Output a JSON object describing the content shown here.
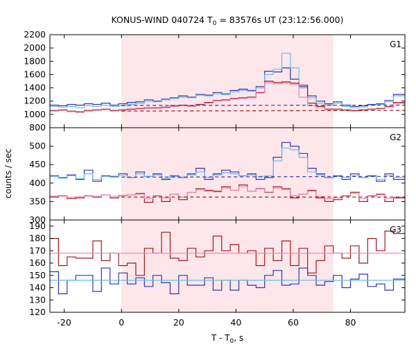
{
  "title": {
    "prefix": "KONUS-WIND 040724 T",
    "sub": "0",
    "suffix": " = 83576s UT (23:12:56.000)"
  },
  "ylabel": "counts / sec",
  "xlabel": {
    "prefix": "T - T",
    "sub": "0",
    "suffix": ", s"
  },
  "colors": {
    "dark_blue": "#3333aa",
    "dark_red": "#a01818",
    "light_blue": "#66bbee",
    "pink": "#ee88bb",
    "shade": "#fde7ea",
    "grid": "#000000"
  },
  "chart_data": [
    {
      "type": "line",
      "panel_label": "G1",
      "xlim": [
        -25,
        99
      ],
      "ylim": [
        800,
        2200
      ],
      "x_ticks": [
        -20,
        0,
        20,
        40,
        60,
        80
      ],
      "y_ticks": [
        800,
        1000,
        1200,
        1400,
        1600,
        1800,
        2000,
        2200
      ],
      "shaded_interval": [
        0,
        74
      ],
      "x_edges": [
        -25,
        -22,
        -19,
        -16,
        -13,
        -10,
        -7,
        -4,
        -1,
        2,
        5,
        8,
        11,
        14,
        17,
        20,
        23,
        26,
        29,
        32,
        35,
        38,
        41,
        44,
        47,
        50,
        53,
        56,
        59,
        62,
        65,
        68,
        71,
        74,
        77,
        80,
        83,
        86,
        89,
        92,
        95,
        99
      ],
      "series": [
        {
          "values": [
            1140,
            1130,
            1150,
            1140,
            1160,
            1150,
            1170,
            1140,
            1160,
            1180,
            1190,
            1220,
            1200,
            1230,
            1250,
            1280,
            1260,
            1300,
            1290,
            1330,
            1310,
            1360,
            1380,
            1360,
            1420,
            1650,
            1640,
            1700,
            1530,
            1420,
            1280,
            1200,
            1160,
            1190,
            1140,
            1120,
            1130,
            1150,
            1160,
            1210,
            1300
          ],
          "color": "dark_blue",
          "kind": "step"
        },
        {
          "values": [
            1120,
            1110,
            1120,
            1100,
            1130,
            1120,
            1140,
            1120,
            1130,
            1150,
            1170,
            1200,
            1190,
            1220,
            1240,
            1260,
            1250,
            1290,
            1280,
            1310,
            1300,
            1340,
            1360,
            1350,
            1400,
            1600,
            1680,
            1920,
            1700,
            1400,
            1250,
            1170,
            1140,
            1170,
            1120,
            1100,
            1110,
            1140,
            1150,
            1190,
            1280
          ],
          "color": "light_blue",
          "kind": "step"
        },
        {
          "values": [
            1060,
            1070,
            1050,
            1040,
            1060,
            1070,
            1080,
            1060,
            1070,
            1080,
            1090,
            1100,
            1100,
            1110,
            1130,
            1140,
            1130,
            1150,
            1180,
            1210,
            1220,
            1240,
            1250,
            1260,
            1330,
            1500,
            1480,
            1490,
            1470,
            1440,
            1170,
            1120,
            1080,
            1080,
            1070,
            1060,
            1070,
            1080,
            1090,
            1120,
            1180
          ],
          "color": "dark_red",
          "kind": "step"
        },
        {
          "values": [
            1050,
            1060,
            1040,
            1030,
            1050,
            1060,
            1070,
            1050,
            1060,
            1070,
            1080,
            1090,
            1090,
            1100,
            1120,
            1130,
            1120,
            1140,
            1170,
            1200,
            1210,
            1230,
            1240,
            1250,
            1320,
            1480,
            1460,
            1470,
            1450,
            1260,
            1130,
            1100,
            1070,
            1070,
            1060,
            1050,
            1060,
            1070,
            1080,
            1110,
            1160
          ],
          "color": "pink",
          "kind": "step"
        },
        {
          "x": [
            0,
            99
          ],
          "values": [
            1135,
            1140
          ],
          "color": "dark_blue",
          "kind": "dashed"
        },
        {
          "x": [
            0,
            99
          ],
          "values": [
            1050,
            1060
          ],
          "color": "dark_red",
          "kind": "dashed"
        }
      ]
    },
    {
      "type": "line",
      "panel_label": "G2",
      "xlim": [
        -25,
        99
      ],
      "ylim": [
        300,
        550
      ],
      "x_ticks": [
        -20,
        0,
        20,
        40,
        60,
        80
      ],
      "y_ticks": [
        300,
        350,
        400,
        450,
        500
      ],
      "shaded_interval": [
        0,
        74
      ],
      "x_edges": [
        -25,
        -22,
        -19,
        -16,
        -13,
        -10,
        -7,
        -4,
        -1,
        2,
        5,
        8,
        11,
        14,
        17,
        20,
        23,
        26,
        29,
        32,
        35,
        38,
        41,
        44,
        47,
        50,
        53,
        56,
        59,
        62,
        65,
        68,
        71,
        74,
        77,
        80,
        83,
        86,
        89,
        92,
        95,
        99
      ],
      "series": [
        {
          "values": [
            420,
            415,
            422,
            410,
            435,
            405,
            420,
            418,
            425,
            415,
            430,
            418,
            425,
            410,
            420,
            415,
            425,
            440,
            410,
            425,
            435,
            430,
            420,
            425,
            410,
            415,
            470,
            510,
            500,
            480,
            440,
            425,
            415,
            420,
            410,
            425,
            415,
            420,
            405,
            425,
            410
          ],
          "color": "dark_blue",
          "kind": "step"
        },
        {
          "values": [
            418,
            413,
            420,
            412,
            425,
            410,
            418,
            416,
            420,
            415,
            425,
            418,
            422,
            412,
            418,
            416,
            422,
            430,
            415,
            422,
            428,
            425,
            420,
            422,
            418,
            420,
            460,
            495,
            490,
            470,
            430,
            422,
            416,
            418,
            415,
            420,
            415,
            418,
            410,
            420,
            415
          ],
          "color": "light_blue",
          "kind": "step"
        },
        {
          "values": [
            362,
            365,
            358,
            360,
            365,
            362,
            368,
            360,
            366,
            368,
            372,
            348,
            365,
            350,
            370,
            355,
            375,
            385,
            380,
            378,
            390,
            380,
            395,
            378,
            385,
            375,
            390,
            385,
            360,
            370,
            380,
            360,
            350,
            355,
            365,
            375,
            350,
            365,
            370,
            350,
            360
          ],
          "color": "dark_red",
          "kind": "step"
        },
        {
          "values": [
            365,
            366,
            362,
            363,
            366,
            364,
            368,
            364,
            367,
            368,
            370,
            358,
            366,
            360,
            370,
            362,
            375,
            382,
            378,
            376,
            386,
            380,
            390,
            378,
            384,
            376,
            386,
            382,
            366,
            370,
            378,
            364,
            358,
            360,
            366,
            372,
            358,
            366,
            368,
            358,
            362
          ],
          "color": "pink",
          "kind": "step"
        },
        {
          "x": [
            0,
            99
          ],
          "values": [
            416,
            418
          ],
          "color": "dark_blue",
          "kind": "dashed"
        },
        {
          "x": [
            0,
            99
          ],
          "values": [
            362,
            362
          ],
          "color": "dark_red",
          "kind": "dashed"
        }
      ]
    },
    {
      "type": "line",
      "panel_label": "G3",
      "xlim": [
        -25,
        99
      ],
      "ylim": [
        120,
        195
      ],
      "x_ticks": [
        -20,
        0,
        20,
        40,
        60,
        80
      ],
      "x_tick_labels": [
        "-20",
        "0",
        "20",
        "40",
        "60",
        "80"
      ],
      "y_ticks": [
        120,
        130,
        140,
        150,
        160,
        170,
        180,
        190
      ],
      "shaded_interval": [
        0,
        74
      ],
      "x_edges": [
        -25,
        -22,
        -19,
        -16,
        -13,
        -10,
        -7,
        -4,
        -1,
        2,
        5,
        8,
        11,
        14,
        17,
        20,
        23,
        26,
        29,
        32,
        35,
        38,
        41,
        44,
        47,
        50,
        53,
        56,
        59,
        62,
        65,
        68,
        71,
        74,
        77,
        80,
        83,
        86,
        89,
        92,
        95,
        99
      ],
      "series": [
        {
          "values": [
            180,
            158,
            165,
            164,
            164,
            178,
            162,
            168,
            158,
            160,
            150,
            172,
            168,
            185,
            164,
            162,
            172,
            165,
            170,
            182,
            170,
            175,
            168,
            170,
            158,
            172,
            162,
            178,
            158,
            172,
            152,
            162,
            174,
            168,
            164,
            174,
            160,
            180,
            170,
            186,
            184
          ],
          "color": "dark_red",
          "kind": "step"
        },
        {
          "values": [
            168,
            168,
            168,
            168,
            168,
            168,
            168,
            168,
            168,
            168,
            168,
            168,
            168,
            168,
            168,
            168,
            168,
            168,
            168,
            168,
            168,
            168,
            168,
            168,
            168,
            168,
            168,
            168,
            168,
            168,
            168,
            168,
            168,
            168,
            168,
            168,
            168,
            168,
            168,
            168,
            168
          ],
          "color": "pink",
          "kind": "step"
        },
        {
          "values": [
            153,
            135,
            146,
            150,
            150,
            137,
            156,
            143,
            152,
            143,
            148,
            141,
            150,
            144,
            135,
            150,
            142,
            142,
            148,
            138,
            146,
            138,
            146,
            142,
            140,
            150,
            154,
            142,
            143,
            156,
            150,
            142,
            145,
            150,
            140,
            147,
            151,
            141,
            143,
            138,
            147
          ],
          "color": "dark_blue",
          "kind": "step"
        },
        {
          "x": [
            -25,
            99
          ],
          "values": [
            146,
            146
          ],
          "color": "light_blue",
          "kind": "solid"
        }
      ]
    }
  ]
}
